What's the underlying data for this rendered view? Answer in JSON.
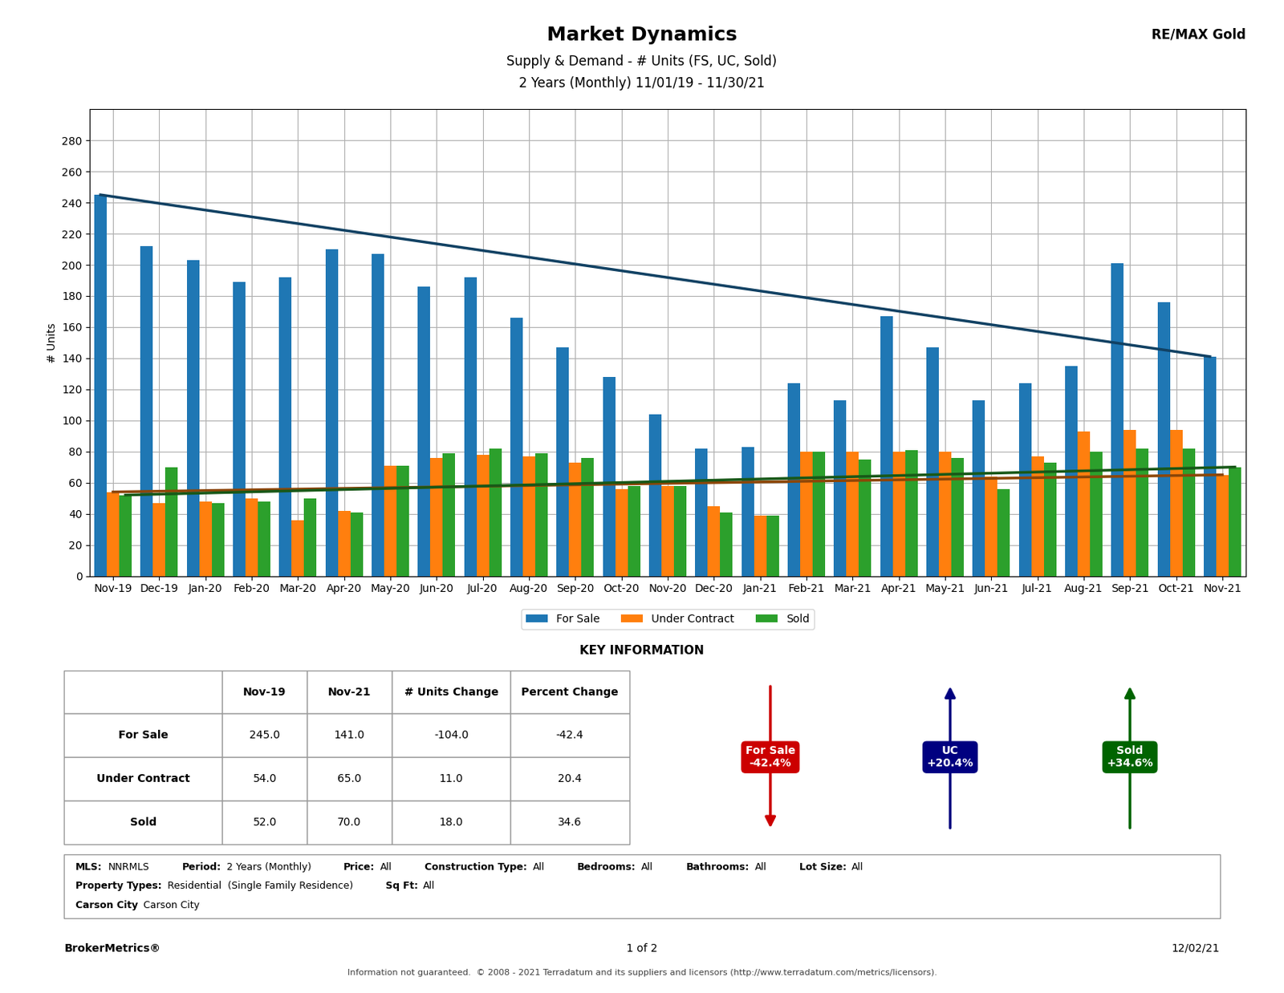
{
  "chart_data": {
    "type": "bar",
    "title": "Market Dynamics",
    "subtitle": [
      "Supply & Demand - # Units (FS, UC, Sold)",
      "2 Years (Monthly) 11/01/19 - 11/30/21"
    ],
    "corner_label": "RE/MAX Gold",
    "y_label": "# Units",
    "categories": [
      "Nov-19",
      "Dec-19",
      "Jan-20",
      "Feb-20",
      "Mar-20",
      "Apr-20",
      "May-20",
      "Jun-20",
      "Jul-20",
      "Aug-20",
      "Sep-20",
      "Oct-20",
      "Nov-20",
      "Dec-20",
      "Jan-21",
      "Feb-21",
      "Mar-21",
      "Apr-21",
      "May-21",
      "Jun-21",
      "Jul-21",
      "Aug-21",
      "Sep-21",
      "Oct-21",
      "Nov-21"
    ],
    "series": [
      {
        "name": "For Sale",
        "values": [
          245,
          212,
          203,
          189,
          192,
          210,
          207,
          186,
          192,
          166,
          147,
          128,
          104,
          82,
          83,
          124,
          113,
          167,
          147,
          113,
          124,
          135,
          201,
          176,
          141
        ],
        "trend": [
          245,
          141
        ]
      },
      {
        "name": "Under Contract",
        "values": [
          54,
          47,
          48,
          50,
          36,
          42,
          71,
          76,
          78,
          77,
          73,
          56,
          58,
          45,
          39,
          80,
          80,
          80,
          80,
          64,
          77,
          93,
          94,
          94,
          65
        ],
        "trend": [
          54,
          65
        ]
      },
      {
        "name": "Sold",
        "values": [
          52,
          70,
          47,
          48,
          50,
          41,
          71,
          79,
          82,
          79,
          76,
          58,
          58,
          41,
          39,
          80,
          75,
          81,
          76,
          56,
          73,
          80,
          82,
          82,
          70
        ],
        "trend": [
          52,
          70
        ]
      }
    ],
    "ylim": [
      0,
      300
    ],
    "yticks": [
      0,
      20,
      40,
      60,
      80,
      100,
      120,
      140,
      160,
      180,
      200,
      220,
      240,
      260,
      280
    ],
    "grid": true,
    "legend": "upper center",
    "table": {
      "title": "KEY INFORMATION",
      "columns": [
        "Nov-19",
        "Nov-21",
        "# Units Change",
        "Percent Change"
      ],
      "rows": [
        [
          "For Sale",
          "245.0",
          "141.0",
          "-104.0",
          "-42.4"
        ],
        [
          "Under Contract",
          "54.0",
          "65.0",
          "11.0",
          "20.4"
        ],
        [
          "Sold",
          "52.0",
          "70.0",
          "18.0",
          "34.6"
        ]
      ]
    },
    "indicators": [
      {
        "text": [
          "For Sale",
          "-42.4%"
        ],
        "direction": "down",
        "color": "#CC0000"
      },
      {
        "text": [
          "UC",
          "+20.4%"
        ],
        "direction": "up",
        "color": "#000080"
      },
      {
        "text": [
          "Sold",
          "+34.6%"
        ],
        "direction": "up",
        "color": "#006400"
      }
    ],
    "metadata": [
      [
        [
          "MLS:",
          "NNRMLS"
        ],
        [
          "Period:",
          "2 Years (Monthly)"
        ],
        [
          "Price:",
          "All"
        ],
        [
          "Construction Type:",
          "All"
        ],
        [
          "Bedrooms:",
          "All"
        ],
        [
          "Bathrooms:",
          "All"
        ],
        [
          "Lot Size:",
          "All"
        ]
      ],
      [
        [
          "Property Types:",
          "Residential  (Single Family Residence)"
        ],
        [
          "Sq Ft:",
          "All"
        ]
      ],
      [
        [
          "Carson City",
          "Carson City"
        ]
      ]
    ],
    "footer": [
      "BrokerMetrics®",
      "1 of 2",
      "12/02/21"
    ],
    "footnote": "Information not guaranteed.  © 2008 - 2021 Terradatum and its suppliers and licensors (http://www.terradatum.com/metrics/licensors)."
  }
}
